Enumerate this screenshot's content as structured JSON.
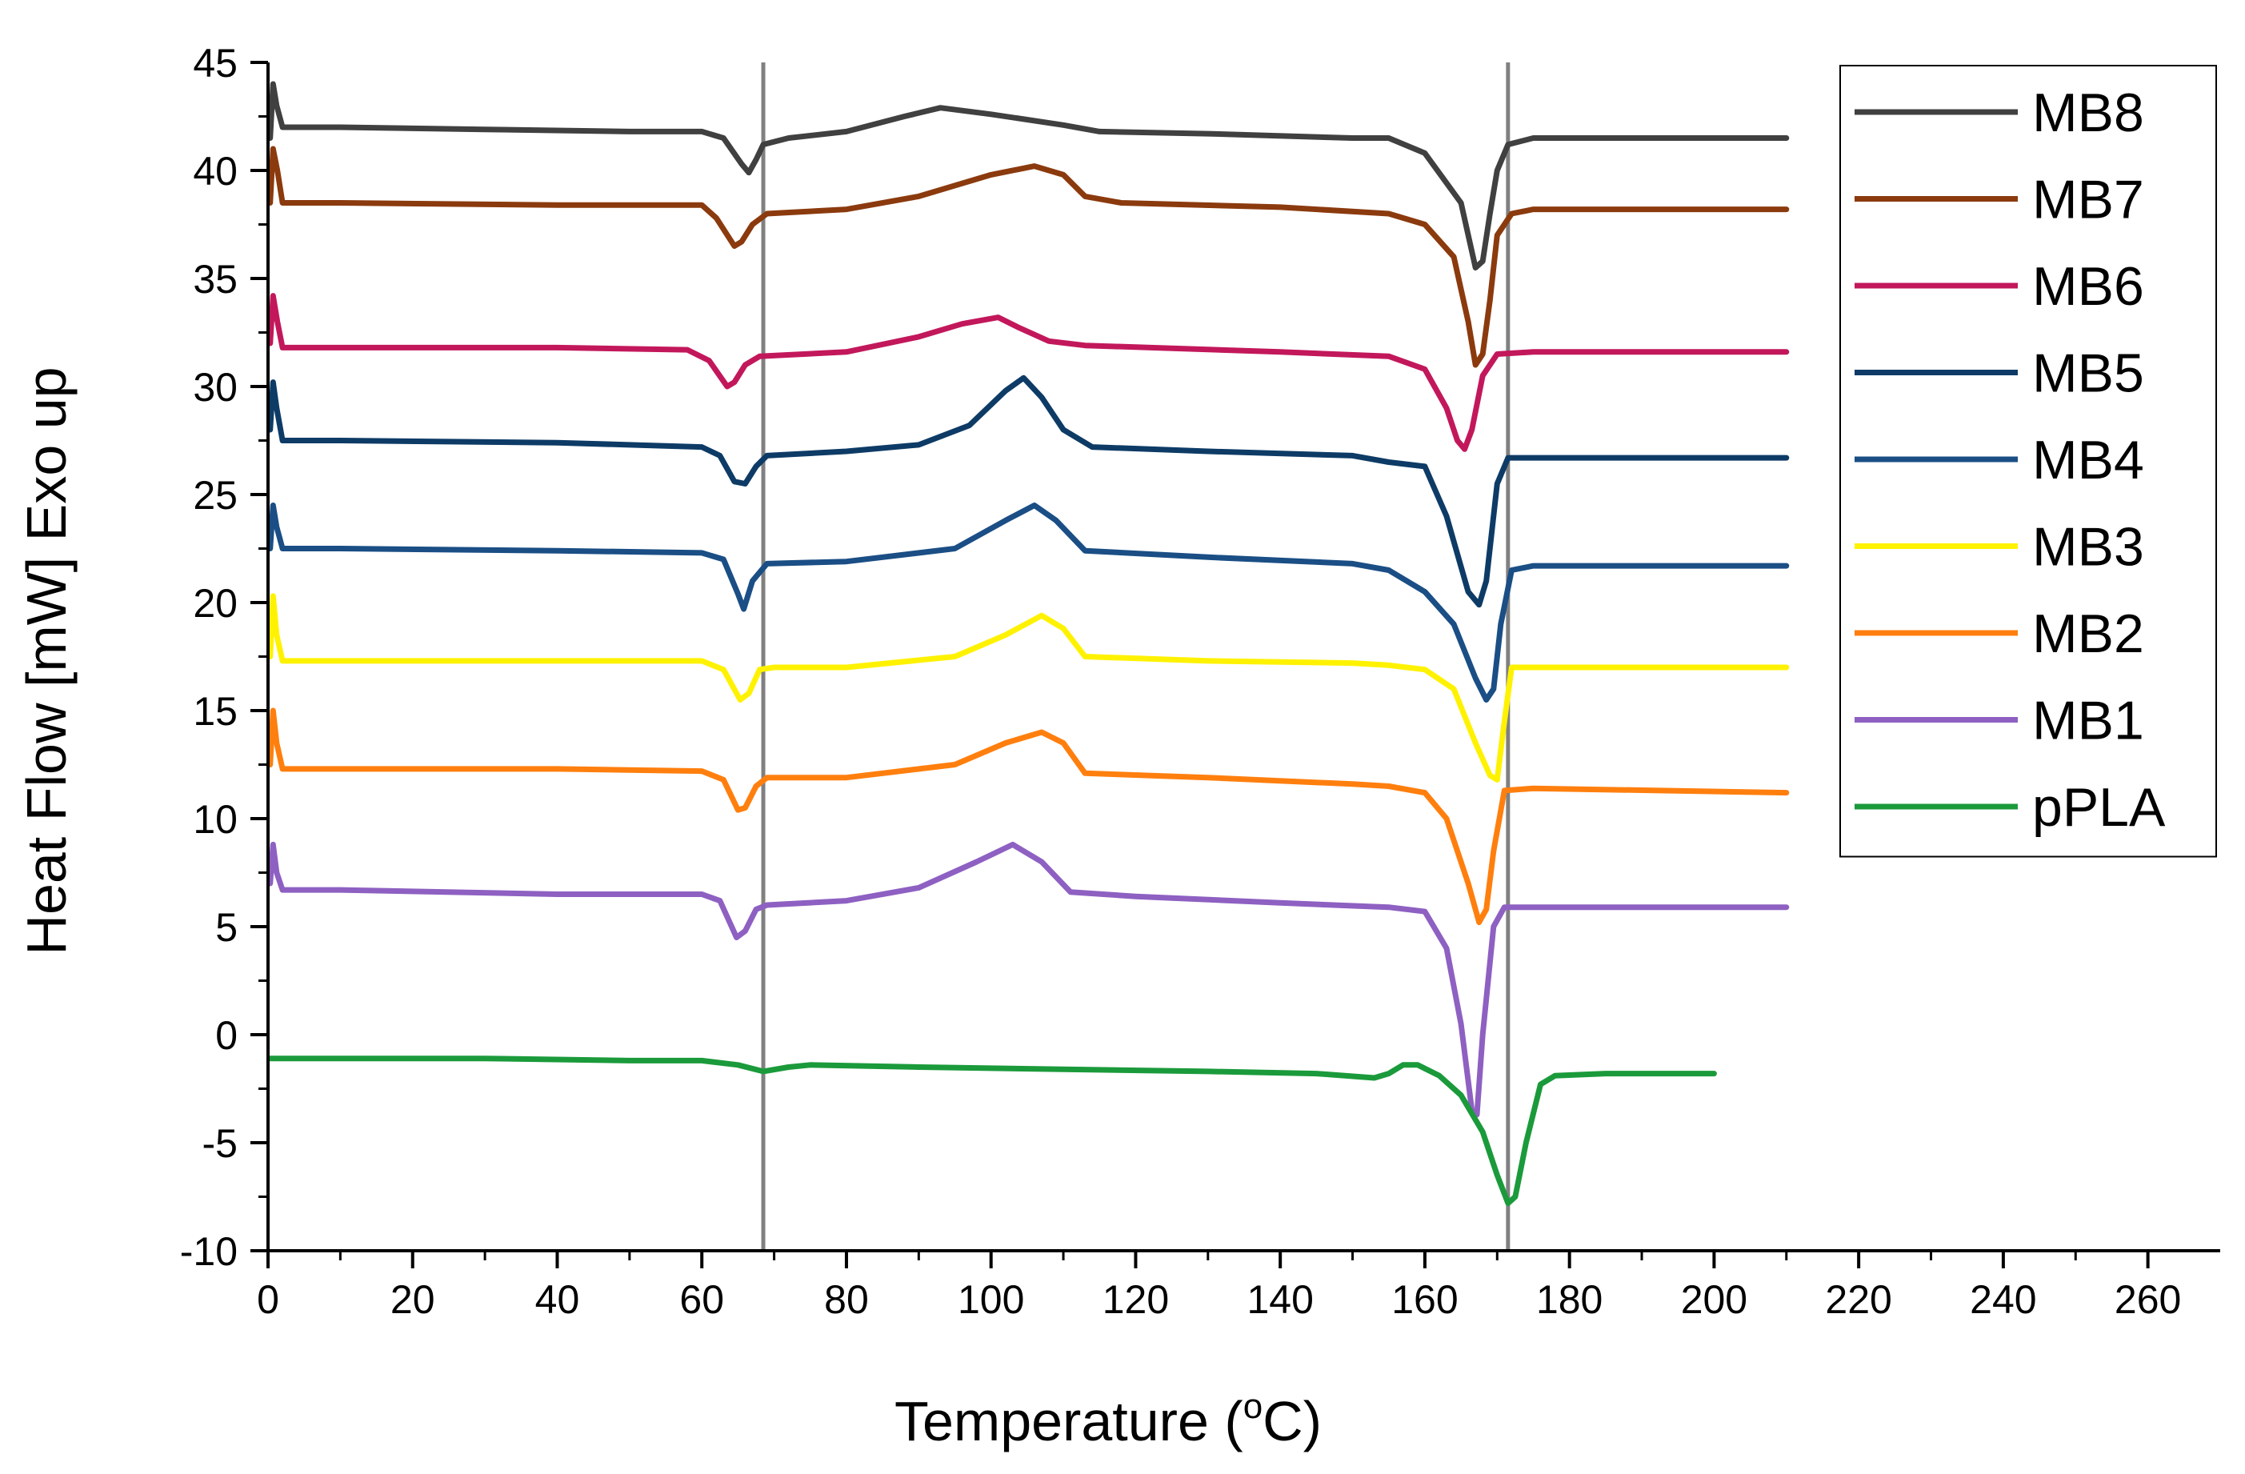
{
  "chart_data": {
    "type": "line",
    "title": "",
    "xlabel": "Temperature (",
    "xlabel_sup": "o",
    "xlabel_unit": "C)",
    "ylabel": "Heat Flow [mW] Exo up",
    "xlim": [
      0,
      270
    ],
    "ylim": [
      -10,
      45
    ],
    "xticks": [
      0,
      20,
      40,
      60,
      80,
      100,
      120,
      140,
      160,
      180,
      200,
      220,
      240,
      260
    ],
    "yticks": [
      -10,
      -5,
      0,
      5,
      10,
      15,
      20,
      25,
      30,
      35,
      40,
      45
    ],
    "vlines": [
      68.5,
      171.5
    ],
    "vline_color": "#808080",
    "legend_position": "top-right",
    "series": [
      {
        "name": "MB8",
        "color": "#404040",
        "points": [
          [
            0.3,
            41.5
          ],
          [
            0.7,
            44.0
          ],
          [
            1.2,
            43.0
          ],
          [
            2.0,
            42.0
          ],
          [
            10,
            42.0
          ],
          [
            30,
            41.9
          ],
          [
            50,
            41.8
          ],
          [
            60,
            41.8
          ],
          [
            63,
            41.5
          ],
          [
            65.5,
            40.3
          ],
          [
            66.5,
            39.9
          ],
          [
            67.5,
            40.5
          ],
          [
            68.5,
            41.2
          ],
          [
            72,
            41.5
          ],
          [
            80,
            41.8
          ],
          [
            88,
            42.5
          ],
          [
            93,
            42.9
          ],
          [
            100,
            42.6
          ],
          [
            110,
            42.1
          ],
          [
            115,
            41.8
          ],
          [
            130,
            41.7
          ],
          [
            150,
            41.5
          ],
          [
            155,
            41.5
          ],
          [
            160,
            40.8
          ],
          [
            165,
            38.5
          ],
          [
            167,
            35.5
          ],
          [
            168,
            35.8
          ],
          [
            169,
            38.0
          ],
          [
            170,
            40.0
          ],
          [
            171.5,
            41.2
          ],
          [
            175,
            41.5
          ],
          [
            210,
            41.5
          ]
        ]
      },
      {
        "name": "MB7",
        "color": "#8B3A0E",
        "points": [
          [
            0.3,
            38.5
          ],
          [
            0.7,
            41.0
          ],
          [
            1.3,
            40.0
          ],
          [
            2.0,
            38.5
          ],
          [
            10,
            38.5
          ],
          [
            40,
            38.4
          ],
          [
            60,
            38.4
          ],
          [
            62,
            37.8
          ],
          [
            64.5,
            36.5
          ],
          [
            65.5,
            36.7
          ],
          [
            67,
            37.5
          ],
          [
            69,
            38.0
          ],
          [
            80,
            38.2
          ],
          [
            90,
            38.8
          ],
          [
            100,
            39.8
          ],
          [
            106,
            40.2
          ],
          [
            110,
            39.8
          ],
          [
            113,
            38.8
          ],
          [
            118,
            38.5
          ],
          [
            140,
            38.3
          ],
          [
            155,
            38.0
          ],
          [
            160,
            37.5
          ],
          [
            164,
            36.0
          ],
          [
            166,
            33.0
          ],
          [
            167,
            31.0
          ],
          [
            168,
            31.5
          ],
          [
            169,
            34.0
          ],
          [
            170,
            37.0
          ],
          [
            172,
            38.0
          ],
          [
            175,
            38.2
          ],
          [
            210,
            38.2
          ]
        ]
      },
      {
        "name": "MB6",
        "color": "#C2185B",
        "points": [
          [
            0.3,
            32.0
          ],
          [
            0.7,
            34.2
          ],
          [
            1.3,
            33.0
          ],
          [
            2.0,
            31.8
          ],
          [
            10,
            31.8
          ],
          [
            40,
            31.8
          ],
          [
            58,
            31.7
          ],
          [
            61,
            31.2
          ],
          [
            63.5,
            30.0
          ],
          [
            64.5,
            30.2
          ],
          [
            66,
            31.0
          ],
          [
            68,
            31.4
          ],
          [
            80,
            31.6
          ],
          [
            90,
            32.3
          ],
          [
            96,
            32.9
          ],
          [
            101,
            33.2
          ],
          [
            104,
            32.7
          ],
          [
            108,
            32.1
          ],
          [
            113,
            31.9
          ],
          [
            140,
            31.6
          ],
          [
            155,
            31.4
          ],
          [
            160,
            30.8
          ],
          [
            163,
            29.0
          ],
          [
            164.5,
            27.5
          ],
          [
            165.5,
            27.1
          ],
          [
            166.5,
            28.0
          ],
          [
            168,
            30.5
          ],
          [
            170,
            31.5
          ],
          [
            175,
            31.6
          ],
          [
            210,
            31.6
          ]
        ]
      },
      {
        "name": "MB5",
        "color": "#0D3B66",
        "points": [
          [
            0.3,
            28.0
          ],
          [
            0.7,
            30.2
          ],
          [
            1.2,
            29.0
          ],
          [
            2.0,
            27.5
          ],
          [
            10,
            27.5
          ],
          [
            40,
            27.4
          ],
          [
            60,
            27.2
          ],
          [
            62.5,
            26.8
          ],
          [
            64.5,
            25.6
          ],
          [
            66,
            25.5
          ],
          [
            67.5,
            26.3
          ],
          [
            69,
            26.8
          ],
          [
            80,
            27.0
          ],
          [
            90,
            27.3
          ],
          [
            97,
            28.2
          ],
          [
            102,
            29.8
          ],
          [
            104.5,
            30.4
          ],
          [
            107,
            29.5
          ],
          [
            110,
            28.0
          ],
          [
            114,
            27.2
          ],
          [
            130,
            27.0
          ],
          [
            150,
            26.8
          ],
          [
            155,
            26.5
          ],
          [
            160,
            26.3
          ],
          [
            163,
            24.0
          ],
          [
            166,
            20.5
          ],
          [
            167.5,
            19.9
          ],
          [
            168.5,
            21.0
          ],
          [
            170,
            25.5
          ],
          [
            171.5,
            26.7
          ],
          [
            210,
            26.7
          ]
        ]
      },
      {
        "name": "MB4",
        "color": "#1A4E85",
        "points": [
          [
            0.3,
            22.5
          ],
          [
            0.7,
            24.5
          ],
          [
            1.2,
            23.5
          ],
          [
            2.0,
            22.5
          ],
          [
            10,
            22.5
          ],
          [
            40,
            22.4
          ],
          [
            60,
            22.3
          ],
          [
            63,
            22.0
          ],
          [
            65,
            20.4
          ],
          [
            65.8,
            19.7
          ],
          [
            67,
            21.0
          ],
          [
            69,
            21.8
          ],
          [
            80,
            21.9
          ],
          [
            95,
            22.5
          ],
          [
            102,
            23.8
          ],
          [
            106,
            24.5
          ],
          [
            109,
            23.8
          ],
          [
            113,
            22.4
          ],
          [
            130,
            22.1
          ],
          [
            150,
            21.8
          ],
          [
            155,
            21.5
          ],
          [
            160,
            20.5
          ],
          [
            164,
            19.0
          ],
          [
            167,
            16.5
          ],
          [
            168.5,
            15.5
          ],
          [
            169.5,
            16.0
          ],
          [
            170.5,
            19.0
          ],
          [
            172,
            21.5
          ],
          [
            175,
            21.7
          ],
          [
            210,
            21.7
          ]
        ]
      },
      {
        "name": "MB3",
        "color": "#FFF200",
        "points": [
          [
            0.3,
            17.5
          ],
          [
            0.7,
            20.3
          ],
          [
            1.2,
            18.5
          ],
          [
            2.0,
            17.3
          ],
          [
            10,
            17.3
          ],
          [
            40,
            17.3
          ],
          [
            60,
            17.3
          ],
          [
            63,
            16.9
          ],
          [
            65.3,
            15.5
          ],
          [
            66.5,
            15.8
          ],
          [
            68,
            16.9
          ],
          [
            70,
            17.0
          ],
          [
            80,
            17.0
          ],
          [
            95,
            17.5
          ],
          [
            102,
            18.5
          ],
          [
            107,
            19.4
          ],
          [
            110,
            18.8
          ],
          [
            113,
            17.5
          ],
          [
            130,
            17.3
          ],
          [
            150,
            17.2
          ],
          [
            155,
            17.1
          ],
          [
            160,
            16.9
          ],
          [
            164,
            16.0
          ],
          [
            167,
            13.5
          ],
          [
            169,
            12.0
          ],
          [
            170,
            11.8
          ],
          [
            171,
            14.5
          ],
          [
            172,
            17.0
          ],
          [
            210,
            17.0
          ]
        ]
      },
      {
        "name": "MB2",
        "color": "#FF7F0E",
        "points": [
          [
            0.3,
            12.5
          ],
          [
            0.7,
            15.0
          ],
          [
            1.2,
            13.5
          ],
          [
            2.0,
            12.3
          ],
          [
            10,
            12.3
          ],
          [
            40,
            12.3
          ],
          [
            60,
            12.2
          ],
          [
            63,
            11.8
          ],
          [
            65,
            10.4
          ],
          [
            66,
            10.5
          ],
          [
            67.5,
            11.5
          ],
          [
            69,
            11.9
          ],
          [
            80,
            11.9
          ],
          [
            95,
            12.5
          ],
          [
            102,
            13.5
          ],
          [
            107,
            14.0
          ],
          [
            110,
            13.5
          ],
          [
            113,
            12.1
          ],
          [
            130,
            11.9
          ],
          [
            150,
            11.6
          ],
          [
            155,
            11.5
          ],
          [
            160,
            11.2
          ],
          [
            163,
            10.0
          ],
          [
            166,
            7.0
          ],
          [
            167.5,
            5.2
          ],
          [
            168.5,
            5.8
          ],
          [
            169.5,
            8.5
          ],
          [
            171,
            11.3
          ],
          [
            175,
            11.4
          ],
          [
            210,
            11.2
          ]
        ]
      },
      {
        "name": "MB1",
        "color": "#8E60C2",
        "points": [
          [
            0.3,
            7.0
          ],
          [
            0.7,
            8.8
          ],
          [
            1.2,
            7.5
          ],
          [
            2.0,
            6.7
          ],
          [
            10,
            6.7
          ],
          [
            40,
            6.5
          ],
          [
            60,
            6.5
          ],
          [
            62.5,
            6.2
          ],
          [
            64.8,
            4.5
          ],
          [
            66,
            4.8
          ],
          [
            67.5,
            5.8
          ],
          [
            69,
            6.0
          ],
          [
            80,
            6.2
          ],
          [
            90,
            6.8
          ],
          [
            98,
            8.0
          ],
          [
            103,
            8.8
          ],
          [
            107,
            8.0
          ],
          [
            111,
            6.6
          ],
          [
            120,
            6.4
          ],
          [
            140,
            6.1
          ],
          [
            155,
            5.9
          ],
          [
            160,
            5.7
          ],
          [
            163,
            4.0
          ],
          [
            165,
            0.5
          ],
          [
            166.5,
            -3.5
          ],
          [
            167.2,
            -3.7
          ],
          [
            168,
            0.0
          ],
          [
            169.5,
            5.0
          ],
          [
            171,
            5.9
          ],
          [
            175,
            5.9
          ],
          [
            210,
            5.9
          ]
        ]
      },
      {
        "name": "pPLA",
        "color": "#1B9A3B",
        "points": [
          [
            0.3,
            -1.1
          ],
          [
            10,
            -1.1
          ],
          [
            30,
            -1.1
          ],
          [
            50,
            -1.2
          ],
          [
            60,
            -1.2
          ],
          [
            65,
            -1.4
          ],
          [
            68.5,
            -1.7
          ],
          [
            72,
            -1.5
          ],
          [
            75,
            -1.4
          ],
          [
            90,
            -1.5
          ],
          [
            110,
            -1.6
          ],
          [
            130,
            -1.7
          ],
          [
            145,
            -1.8
          ],
          [
            153,
            -2.0
          ],
          [
            155,
            -1.8
          ],
          [
            157,
            -1.4
          ],
          [
            159,
            -1.4
          ],
          [
            162,
            -1.9
          ],
          [
            165,
            -2.8
          ],
          [
            168,
            -4.5
          ],
          [
            170,
            -6.5
          ],
          [
            171.5,
            -7.8
          ],
          [
            172.5,
            -7.5
          ],
          [
            174,
            -5.0
          ],
          [
            176,
            -2.3
          ],
          [
            178,
            -1.9
          ],
          [
            185,
            -1.8
          ],
          [
            200,
            -1.8
          ]
        ]
      }
    ]
  }
}
